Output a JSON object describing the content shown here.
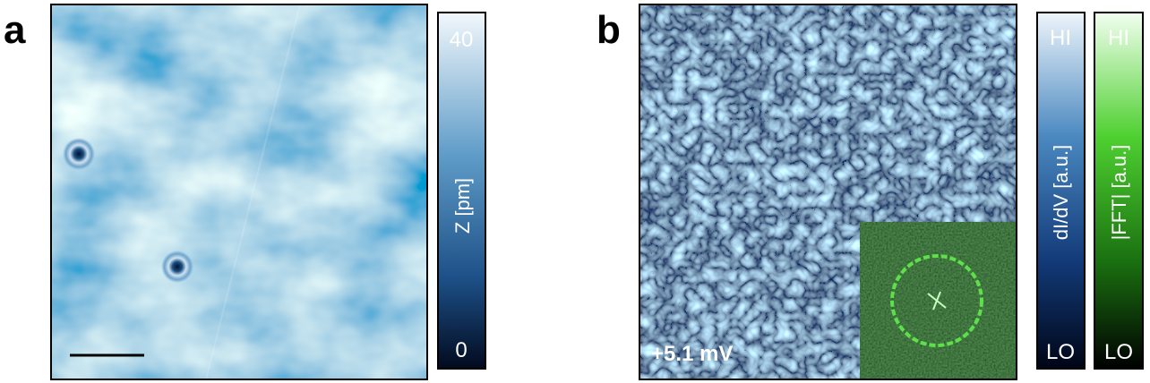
{
  "panels": [
    {
      "label": "a",
      "colorbar": {
        "ticks": [
          40,
          0
        ],
        "label": "Z [pm]"
      }
    },
    {
      "label": "b",
      "annotation": "+5.1 mV",
      "colorbars": [
        {
          "top": "HI",
          "bottom": "LO",
          "label": "dI/dV [a.u.]"
        },
        {
          "top": "HI",
          "bottom": "LO",
          "label": "|FFT| [a.u.]"
        }
      ]
    }
  ]
}
